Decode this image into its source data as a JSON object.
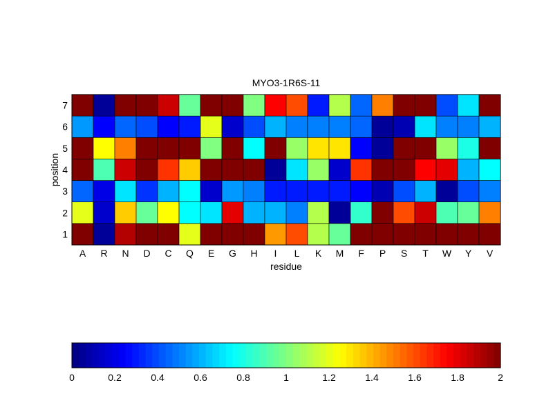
{
  "chart_data": {
    "type": "heatmap",
    "title": "MYO3-1R6S-11",
    "xlabel": "residue",
    "ylabel": "position",
    "x_categories": [
      "A",
      "R",
      "N",
      "D",
      "C",
      "Q",
      "E",
      "G",
      "H",
      "I",
      "L",
      "K",
      "M",
      "F",
      "P",
      "S",
      "T",
      "W",
      "Y",
      "V"
    ],
    "y_categories": [
      "1",
      "2",
      "3",
      "4",
      "5",
      "6",
      "7"
    ],
    "values": [
      [
        2.0,
        0.05,
        1.9,
        2.0,
        2.0,
        1.2,
        2.0,
        2.0,
        2.0,
        1.45,
        1.6,
        1.1,
        0.95,
        2.0,
        2.0,
        2.0,
        2.0,
        2.0,
        2.0,
        2.0
      ],
      [
        1.2,
        0.15,
        1.35,
        0.95,
        1.25,
        0.75,
        0.7,
        1.8,
        0.6,
        0.6,
        0.5,
        1.1,
        0.05,
        0.85,
        2.0,
        1.6,
        1.85,
        0.9,
        0.95,
        1.5
      ],
      [
        0.45,
        0.2,
        0.7,
        0.35,
        0.6,
        0.75,
        0.15,
        0.55,
        0.5,
        0.3,
        0.3,
        0.3,
        0.3,
        0.25,
        0.1,
        0.4,
        0.6,
        0.05,
        0.4,
        0.5
      ],
      [
        2.0,
        0.9,
        1.85,
        2.0,
        1.65,
        1.35,
        2.0,
        2.0,
        2.0,
        0.05,
        0.7,
        1.05,
        0.15,
        1.65,
        2.0,
        2.0,
        1.75,
        1.8,
        0.6,
        0.75
      ],
      [
        2.0,
        1.25,
        1.5,
        2.0,
        2.0,
        2.0,
        1.0,
        2.0,
        0.75,
        2.0,
        1.05,
        1.3,
        1.3,
        0.25,
        0.05,
        2.0,
        2.0,
        1.05,
        0.8,
        2.0
      ],
      [
        0.55,
        0.25,
        0.45,
        0.4,
        0.25,
        0.3,
        1.2,
        0.15,
        0.4,
        0.6,
        0.5,
        0.5,
        0.5,
        0.45,
        0.05,
        0.1,
        0.7,
        0.5,
        0.5,
        0.6
      ],
      [
        2.0,
        0.05,
        2.0,
        2.0,
        1.85,
        0.95,
        2.0,
        2.0,
        1.0,
        1.75,
        1.6,
        0.3,
        1.1,
        0.45,
        1.5,
        2.0,
        2.0,
        0.4,
        0.7,
        2.0
      ]
    ],
    "colorbar": {
      "colormap": "jet",
      "range": [
        0,
        2
      ],
      "ticks": [
        "0",
        "0.2",
        "0.4",
        "0.6",
        "0.8",
        "1",
        "1.2",
        "1.4",
        "1.6",
        "1.8",
        "2"
      ]
    }
  }
}
